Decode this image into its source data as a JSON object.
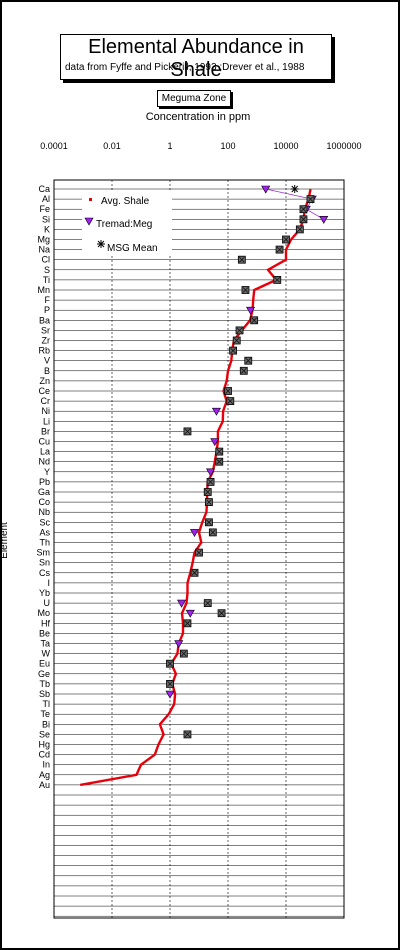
{
  "chart_data": {
    "type": "scatter",
    "title": "Elemental  Abundance in Shale",
    "subtitle": "data from Fyffe and Pickerill, 1993 ;Drever et al., 1988",
    "zone_label": "Meguma Zone",
    "xlabel": "Concentration in ppm",
    "ylabel": "Element",
    "xscale": "log",
    "xlim": [
      0.0001,
      1000000
    ],
    "xticks": [
      "0.0001",
      "0.01",
      "1",
      "100",
      "10000",
      "1000000"
    ],
    "categories": [
      "Ca",
      "Al",
      "Fe",
      "Si",
      "K",
      "Mg",
      "Na",
      "Cl",
      "S",
      "Ti",
      "Mn",
      "F",
      "P",
      "Ba",
      "Sr",
      "Zr",
      "Rb",
      "V",
      "B",
      "Zn",
      "Ce",
      "Cr",
      "Ni",
      "Li",
      "Br",
      "Cu",
      "La",
      "Nd",
      "Y",
      "Pb",
      "Ga",
      "Co",
      "Nb",
      "Sc",
      "As",
      "Th",
      "Sm",
      "Sn",
      "Cs",
      "I",
      "Yb",
      "U",
      "Mo",
      "Hf",
      "Be",
      "Ta",
      "W",
      "Eu",
      "Ge",
      "Tb",
      "Sb",
      "Tl",
      "Te",
      "Bi",
      "Se",
      "Hg",
      "Cd",
      "In",
      "Ag",
      "Au"
    ],
    "series": [
      {
        "name": "Avg. Shale",
        "values": [
          70000,
          60000,
          45000,
          40000,
          30000,
          15000,
          10000,
          10000,
          2400,
          4600,
          800,
          740,
          700,
          580,
          300,
          160,
          140,
          130,
          100,
          90,
          70,
          90,
          68,
          66,
          45,
          45,
          40,
          35,
          30,
          20,
          19,
          19,
          18,
          13,
          10,
          12,
          7,
          6,
          5,
          4,
          4,
          3.7,
          2.6,
          2.8,
          2.8,
          2,
          1.8,
          1.1,
          1.6,
          1.2,
          1.5,
          1.4,
          0.9,
          0.45,
          0.6,
          0.4,
          0.3,
          0.1,
          0.07,
          0.0008
        ]
      },
      {
        "name": "Tremad:Meg",
        "values": [
          2000,
          80000,
          50000,
          200000,
          null,
          null,
          null,
          null,
          null,
          null,
          null,
          null,
          600,
          null,
          null,
          null,
          null,
          null,
          null,
          null,
          null,
          null,
          40,
          null,
          null,
          35,
          null,
          null,
          25,
          null,
          null,
          null,
          null,
          null,
          7,
          null,
          null,
          null,
          null,
          null,
          null,
          2.5,
          5,
          null,
          null,
          2,
          null,
          null,
          null,
          null,
          1,
          null,
          null,
          null,
          null,
          null,
          null,
          null,
          null,
          null
        ]
      },
      {
        "name": "MSG Mean",
        "values": [
          20000,
          70000,
          40000,
          40000,
          30000,
          10000,
          6000,
          300,
          null,
          5000,
          400,
          null,
          null,
          800,
          250,
          200,
          150,
          500,
          350,
          null,
          100,
          120,
          null,
          null,
          4,
          null,
          50,
          50,
          null,
          25,
          20,
          22,
          null,
          22,
          30,
          null,
          10,
          null,
          7,
          null,
          null,
          20,
          60,
          4,
          null,
          null,
          3,
          1,
          null,
          1,
          null,
          null,
          null,
          null,
          4,
          null,
          null,
          null,
          null,
          null
        ]
      }
    ]
  }
}
